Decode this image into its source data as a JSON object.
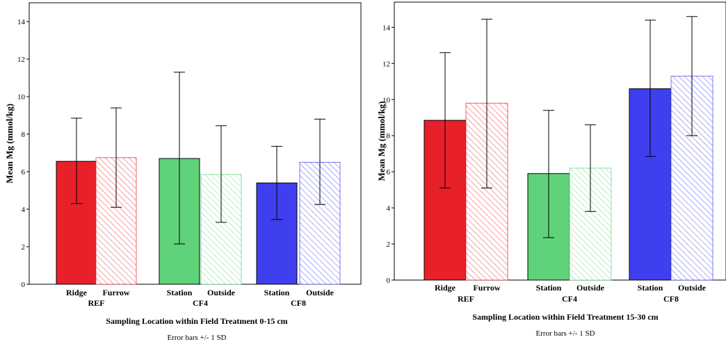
{
  "chart_data": [
    {
      "type": "bar",
      "ylabel": "Mean Mg (mmol/kg)",
      "xlabel": "Sampling Location within Field Treatment 0-15 cm",
      "note": "Error bars +/- 1 SD",
      "ylim": [
        0,
        15
      ],
      "yticks": [
        0,
        2,
        4,
        6,
        8,
        10,
        12,
        14
      ],
      "groups": [
        {
          "name": "REF",
          "bars": [
            {
              "label": "Ridge",
              "value": 6.55,
              "sd_low": 4.3,
              "sd_high": 8.85,
              "color": "#e8202a",
              "pattern": "solid"
            },
            {
              "label": "Furrow",
              "value": 6.75,
              "sd_low": 4.1,
              "sd_high": 9.4,
              "color": "#e8202a",
              "pattern": "hatch"
            }
          ]
        },
        {
          "name": "CF4",
          "bars": [
            {
              "label": "Station",
              "value": 6.7,
              "sd_low": 2.15,
              "sd_high": 11.3,
              "color": "#5fd27a",
              "pattern": "solid"
            },
            {
              "label": "Outside",
              "value": 5.85,
              "sd_low": 3.3,
              "sd_high": 8.45,
              "color": "#5fd27a",
              "pattern": "hatch"
            }
          ]
        },
        {
          "name": "CF8",
          "bars": [
            {
              "label": "Station",
              "value": 5.4,
              "sd_low": 3.45,
              "sd_high": 7.35,
              "color": "#3f3ff0",
              "pattern": "solid"
            },
            {
              "label": "Outside",
              "value": 6.5,
              "sd_low": 4.25,
              "sd_high": 8.8,
              "color": "#3f3ff0",
              "pattern": "hatch"
            }
          ]
        }
      ]
    },
    {
      "type": "bar",
      "ylabel": "Mean Mg (mmol/kg)",
      "xlabel": "Sampling Location within Field Treatment 15-30 cm",
      "note": "Error bars +/- 1 SD",
      "ylim": [
        0,
        15.4
      ],
      "yticks": [
        0,
        2,
        4,
        6,
        8,
        10,
        12,
        14
      ],
      "groups": [
        {
          "name": "REF",
          "bars": [
            {
              "label": "Ridge",
              "value": 8.85,
              "sd_low": 5.1,
              "sd_high": 12.6,
              "color": "#e8202a",
              "pattern": "solid"
            },
            {
              "label": "Furrow",
              "value": 9.8,
              "sd_low": 5.1,
              "sd_high": 14.45,
              "color": "#e8202a",
              "pattern": "hatch"
            }
          ]
        },
        {
          "name": "CF4",
          "bars": [
            {
              "label": "Station",
              "value": 5.9,
              "sd_low": 2.35,
              "sd_high": 9.4,
              "color": "#5fd27a",
              "pattern": "solid"
            },
            {
              "label": "Outside",
              "value": 6.2,
              "sd_low": 3.8,
              "sd_high": 8.6,
              "color": "#5fd27a",
              "pattern": "hatch"
            }
          ]
        },
        {
          "name": "CF8",
          "bars": [
            {
              "label": "Station",
              "value": 10.6,
              "sd_low": 6.85,
              "sd_high": 14.4,
              "color": "#3f3ff0",
              "pattern": "solid"
            },
            {
              "label": "Outside",
              "value": 11.3,
              "sd_low": 8.0,
              "sd_high": 14.6,
              "color": "#3f3ff0",
              "pattern": "hatch"
            }
          ]
        }
      ]
    }
  ]
}
